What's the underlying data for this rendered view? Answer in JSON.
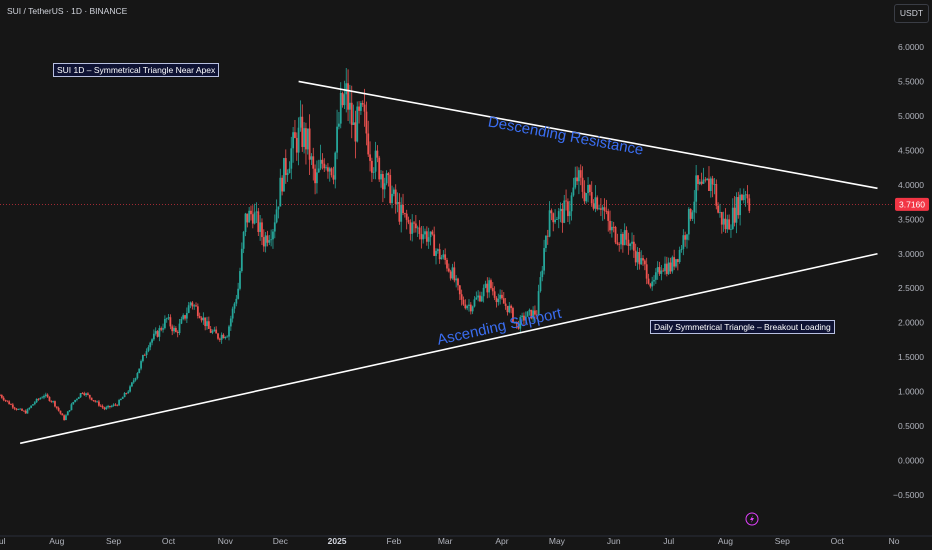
{
  "header": {
    "symbol_title": "SUI / TetherUS · 1D · BINANCE",
    "currency_button": "USDT"
  },
  "annotations": {
    "top_note": "SUI 1D – Symmetrical Triangle Near Apex",
    "bottom_note": "Daily Symmetrical Triangle – Breakout Loading",
    "resistance_label": "Descending Resistance",
    "support_label": "Ascending Support"
  },
  "colors": {
    "background": "#161616",
    "up_candle": "#26a69a",
    "down_candle": "#ef5350",
    "trendline": "#ffffff",
    "trend_text": "#3a6df0",
    "last_price_badge": "#f23645"
  },
  "chart_data": {
    "type": "candlestick",
    "title": "",
    "y_axis": {
      "ticks": [
        "6.0000",
        "5.5000",
        "5.0000",
        "4.5000",
        "4.0000",
        "3.5000",
        "3.0000",
        "2.5000",
        "2.0000",
        "1.5000",
        "1.0000",
        "0.5000",
        "0.0000",
        "−0.5000"
      ],
      "range": [
        -0.5,
        6.0
      ],
      "scale": "linear",
      "side": "right"
    },
    "x_axis": {
      "ticks": [
        "Jul",
        "Aug",
        "Sep",
        "Oct",
        "Nov",
        "Dec",
        "2025",
        "Feb",
        "Mar",
        "Apr",
        "May",
        "Jun",
        "Jul",
        "Aug",
        "Sep",
        "Oct",
        "No"
      ],
      "range": [
        "2024-07-01",
        "2025-11-01"
      ]
    },
    "grid": false,
    "last_price": {
      "label": "3.7160",
      "value": 3.716
    },
    "trendlines": [
      {
        "name": "Descending Resistance",
        "start": [
          "2024-12-11",
          5.5
        ],
        "end": [
          "2025-10-23",
          3.95
        ]
      },
      {
        "name": "Ascending Support",
        "start": [
          "2024-07-12",
          0.25
        ],
        "end": [
          "2025-10-23",
          3.0
        ]
      }
    ],
    "price_path": [
      [
        "2024-07-01",
        0.95
      ],
      [
        "2024-07-05",
        0.85
      ],
      [
        "2024-07-10",
        0.75
      ],
      [
        "2024-07-15",
        0.7
      ],
      [
        "2024-07-20",
        0.85
      ],
      [
        "2024-07-25",
        0.95
      ],
      [
        "2024-07-30",
        0.85
      ],
      [
        "2024-08-05",
        0.6
      ],
      [
        "2024-08-10",
        0.85
      ],
      [
        "2024-08-15",
        1.0
      ],
      [
        "2024-08-20",
        0.9
      ],
      [
        "2024-08-27",
        0.75
      ],
      [
        "2024-09-03",
        0.82
      ],
      [
        "2024-09-10",
        1.05
      ],
      [
        "2024-09-15",
        1.35
      ],
      [
        "2024-09-20",
        1.7
      ],
      [
        "2024-09-25",
        1.85
      ],
      [
        "2024-09-30",
        2.05
      ],
      [
        "2024-10-05",
        1.85
      ],
      [
        "2024-10-10",
        2.1
      ],
      [
        "2024-10-13",
        2.3
      ],
      [
        "2024-10-18",
        2.15
      ],
      [
        "2024-10-23",
        1.9
      ],
      [
        "2024-10-28",
        1.8
      ],
      [
        "2024-11-02",
        1.85
      ],
      [
        "2024-11-08",
        2.5
      ],
      [
        "2024-11-12",
        3.5
      ],
      [
        "2024-11-16",
        3.6
      ],
      [
        "2024-11-22",
        3.2
      ],
      [
        "2024-11-27",
        3.4
      ],
      [
        "2024-12-02",
        4.1
      ],
      [
        "2024-12-07",
        4.5
      ],
      [
        "2024-12-12",
        4.75
      ],
      [
        "2024-12-16",
        4.6
      ],
      [
        "2024-12-20",
        4.0
      ],
      [
        "2024-12-25",
        4.4
      ],
      [
        "2024-12-30",
        4.25
      ],
      [
        "2025-01-03",
        5.1
      ],
      [
        "2025-01-06",
        5.3
      ],
      [
        "2025-01-10",
        4.8
      ],
      [
        "2025-01-15",
        5.0
      ],
      [
        "2025-01-20",
        4.4
      ],
      [
        "2025-01-25",
        4.2
      ],
      [
        "2025-01-30",
        3.9
      ],
      [
        "2025-02-04",
        3.6
      ],
      [
        "2025-02-10",
        3.4
      ],
      [
        "2025-02-15",
        3.35
      ],
      [
        "2025-02-20",
        3.25
      ],
      [
        "2025-02-25",
        3.0
      ],
      [
        "2025-03-01",
        2.9
      ],
      [
        "2025-03-05",
        2.7
      ],
      [
        "2025-03-10",
        2.3
      ],
      [
        "2025-03-15",
        2.25
      ],
      [
        "2025-03-20",
        2.4
      ],
      [
        "2025-03-25",
        2.55
      ],
      [
        "2025-03-30",
        2.35
      ],
      [
        "2025-04-05",
        2.2
      ],
      [
        "2025-04-09",
        1.95
      ],
      [
        "2025-04-14",
        2.1
      ],
      [
        "2025-04-20",
        2.15
      ],
      [
        "2025-04-25",
        3.3
      ],
      [
        "2025-04-28",
        3.6
      ],
      [
        "2025-05-03",
        3.55
      ],
      [
        "2025-05-08",
        3.7
      ],
      [
        "2025-05-12",
        4.1
      ],
      [
        "2025-05-16",
        3.9
      ],
      [
        "2025-05-20",
        3.85
      ],
      [
        "2025-05-25",
        3.75
      ],
      [
        "2025-05-30",
        3.35
      ],
      [
        "2025-06-04",
        3.25
      ],
      [
        "2025-06-09",
        3.2
      ],
      [
        "2025-06-14",
        2.95
      ],
      [
        "2025-06-19",
        2.75
      ],
      [
        "2025-06-22",
        2.5
      ],
      [
        "2025-06-27",
        2.85
      ],
      [
        "2025-07-02",
        2.8
      ],
      [
        "2025-07-07",
        3.05
      ],
      [
        "2025-07-12",
        3.5
      ],
      [
        "2025-07-16",
        3.95
      ],
      [
        "2025-07-20",
        3.9
      ],
      [
        "2025-07-25",
        4.1
      ],
      [
        "2025-07-28",
        3.6
      ],
      [
        "2025-08-01",
        3.4
      ],
      [
        "2025-08-05",
        3.55
      ],
      [
        "2025-08-09",
        3.8
      ],
      [
        "2025-08-12",
        3.95
      ],
      [
        "2025-08-14",
        3.72
      ]
    ]
  }
}
